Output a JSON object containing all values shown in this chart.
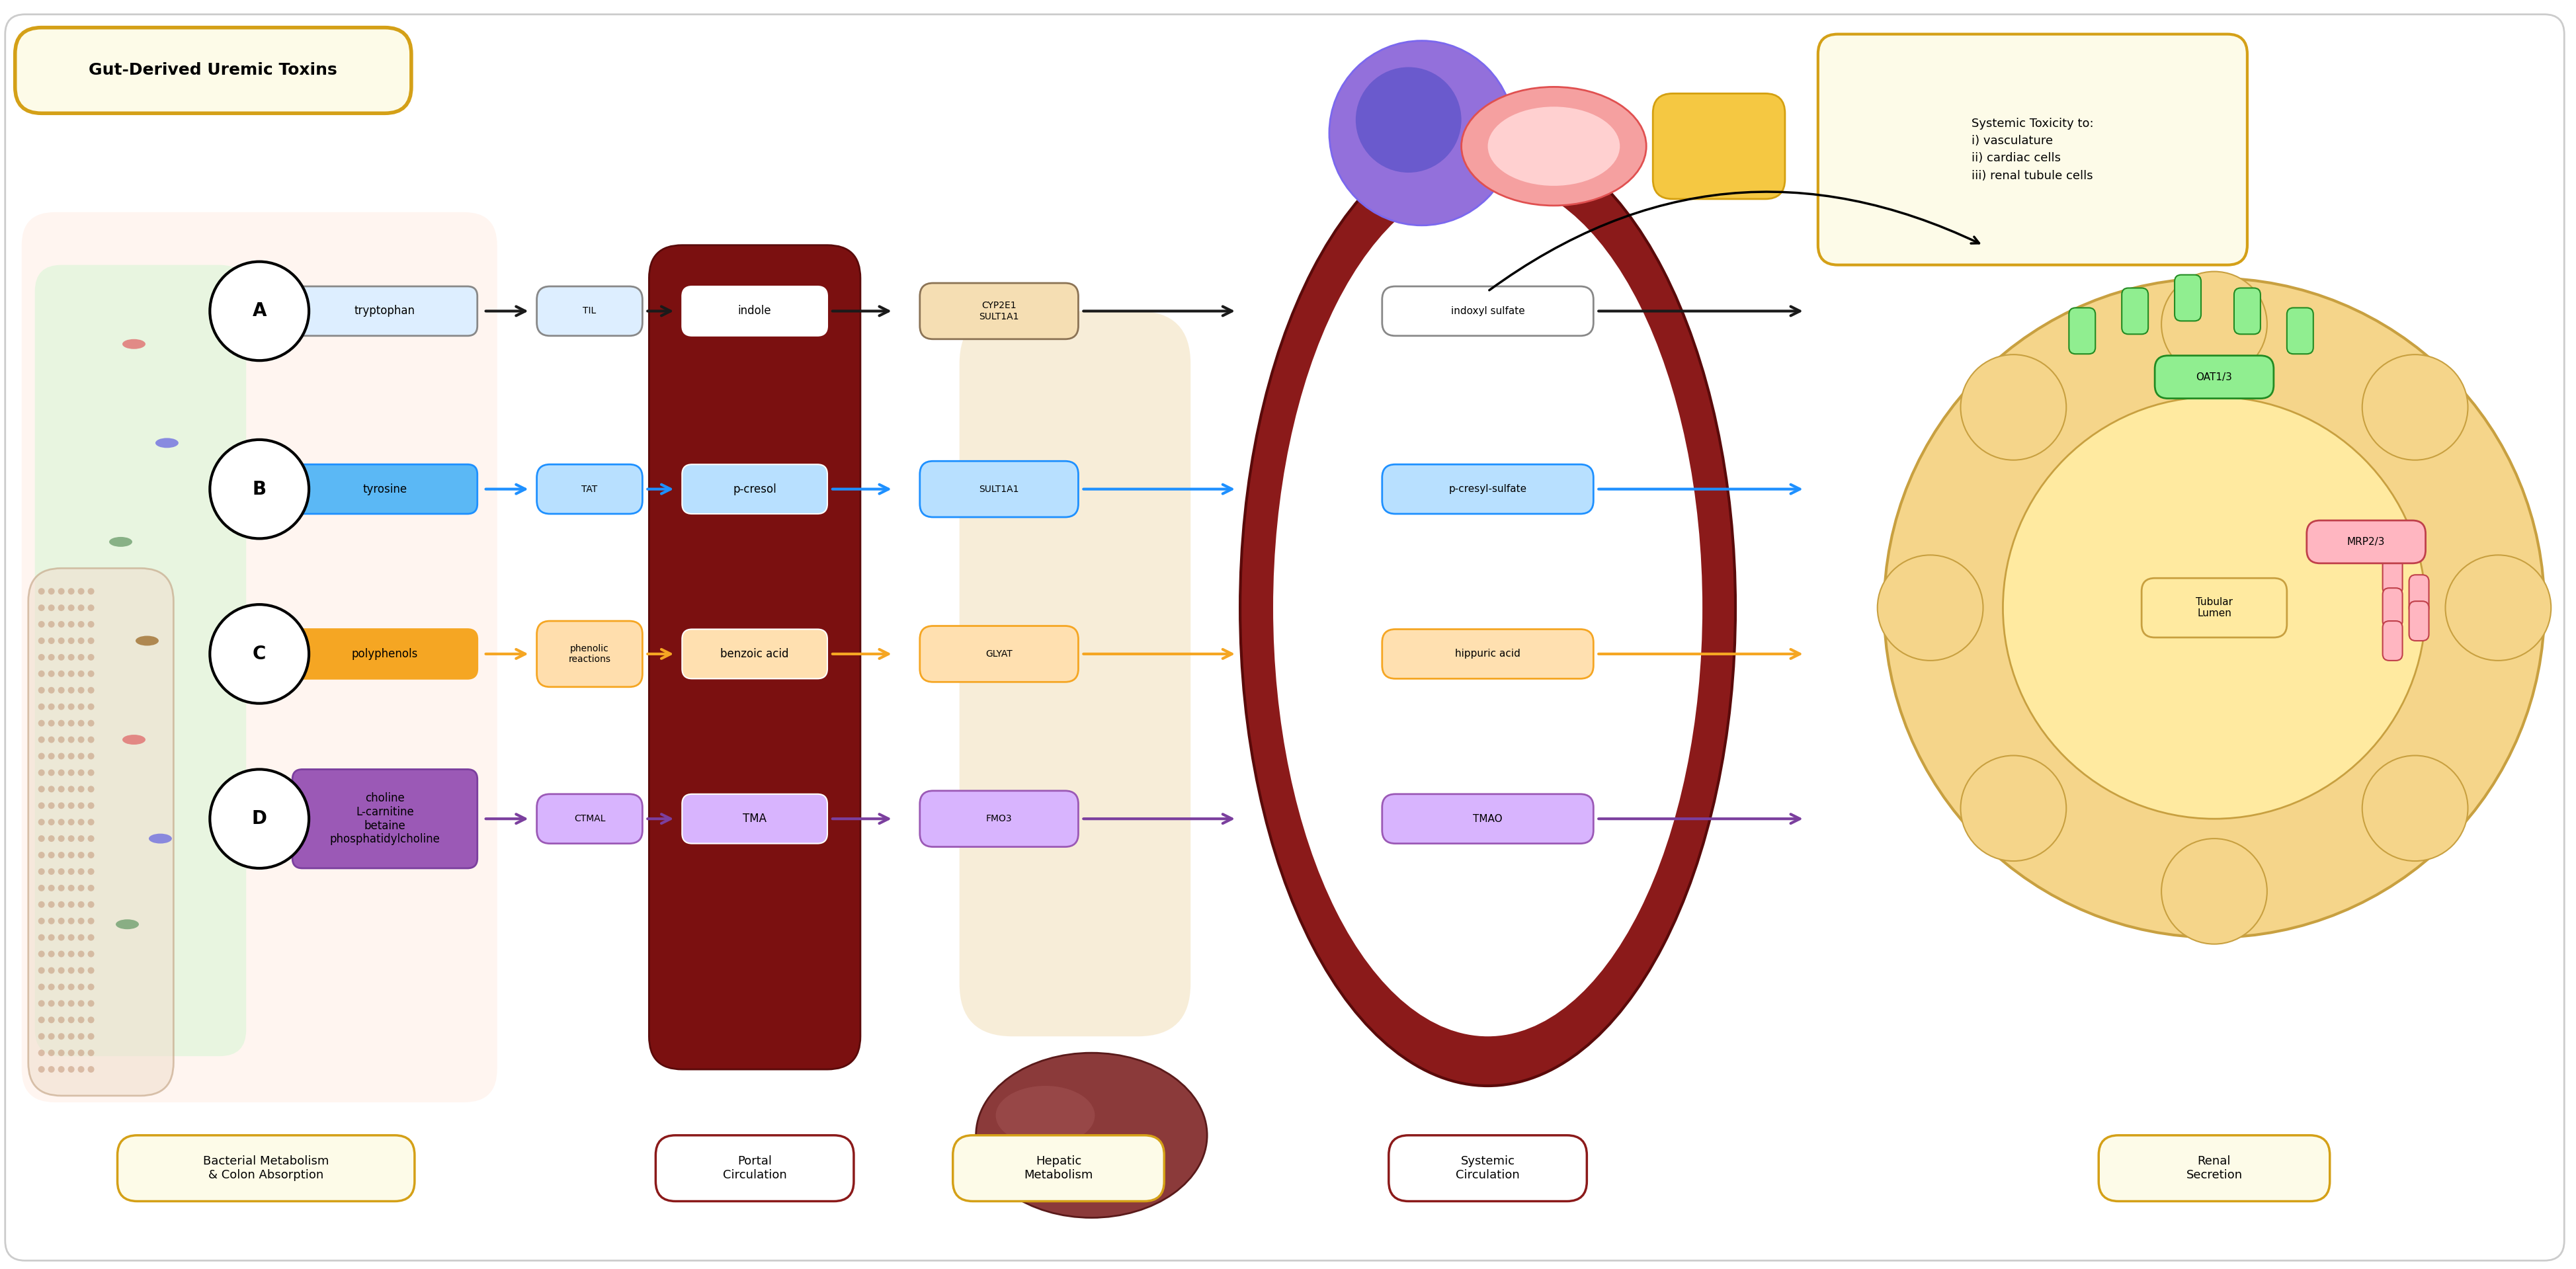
{
  "title": "Gut-Derived Uremic Toxins",
  "bg_color": "#FFFFFF",
  "fig_bg": "#FFFFFF",
  "label_A": "A",
  "label_B": "B",
  "label_C": "C",
  "label_D": "D",
  "substrate_A": "tryptophan",
  "substrate_B": "tyrosine",
  "substrate_C": "polyphenols",
  "substrate_D": "choline\nL-carnitine\nbetaine\nphosphatidylcholine",
  "enzyme_A": "TIL",
  "enzyme_B": "TAT",
  "enzyme_C": "phenolic\nreactions",
  "enzyme_D": "CTMAL",
  "portal_A": "indole",
  "portal_B": "p-cresol",
  "portal_C": "benzoic acid",
  "portal_D": "TMA",
  "hepatic_A": "CYP2E1\nSULT1A1",
  "hepatic_B": "SULT1A1",
  "hepatic_C": "GLYAT",
  "hepatic_D": "FMO3",
  "systemic_A": "indoxyl sulfate",
  "systemic_B": "p-cresyl-sulfate",
  "systemic_C": "hippuric acid",
  "systemic_D": "TMAO",
  "renal_top": "OAT1/3",
  "renal_mid": "MRP2/3",
  "renal_inner": "Tubular\nLumen",
  "bottom_labels": [
    "Bacterial Metabolism\n& Colon Absorption",
    "Portal\nCirculation",
    "Hepatic\nMetabolism",
    "Systemic\nCirculation",
    "Renal\nSecretion"
  ],
  "toxicity_box": "Systemic Toxicity to:\ni) vasculature\nii) cardiac cells\niii) renal tubule cells",
  "color_A": "#DDEEFF",
  "color_A_border": "#888888",
  "color_B": "#5BB8F5",
  "color_B_border": "#5BB8F5",
  "color_C": "#F5A623",
  "color_C_border": "#F5A623",
  "color_D": "#9B59B6",
  "color_D_border": "#9B59B6",
  "portal_bg": "#8B1A1A",
  "systemic_bg_border": "#8B1A1A",
  "hepatic_bg": "#F5DEB3",
  "yellow_border": "#D4A017",
  "yellow_fill": "#FDFBE8",
  "gut_bg": "#FFF0F0",
  "gut_circle_bg": "#E8F5E9"
}
